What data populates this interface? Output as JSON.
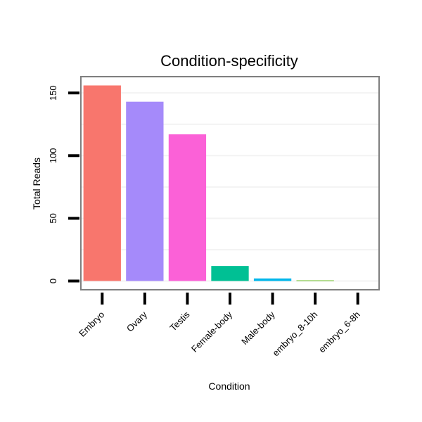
{
  "chart_data": {
    "type": "bar",
    "title": "Condition-specificity",
    "xlabel": "Condition",
    "ylabel": "Total Reads",
    "categories": [
      "Embryo",
      "Ovary",
      "Testis",
      "Female-body",
      "Male-body",
      "embryo_8-10h",
      "embryo_6-8h"
    ],
    "values": [
      156,
      143,
      117,
      12,
      2,
      0.5,
      0
    ],
    "colors": [
      "#f8766d",
      "#a58afa",
      "#fb61d7",
      "#00c094",
      "#00b6eb",
      "#53b400",
      "#c49a00"
    ],
    "yticks": [
      0,
      50,
      100,
      150
    ],
    "ylim": [
      -7,
      163
    ],
    "grid": true,
    "legend": "none"
  }
}
